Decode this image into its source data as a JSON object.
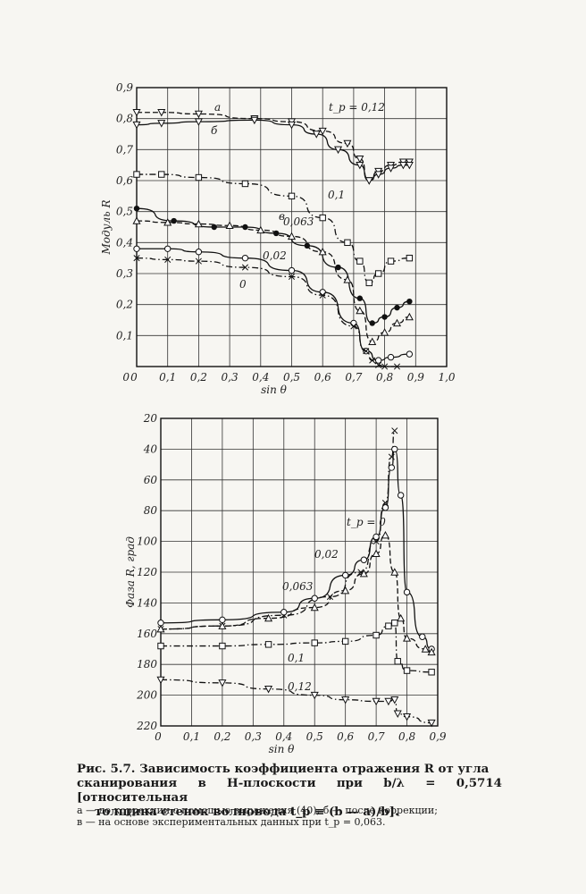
{
  "chart_data": [
    {
      "type": "line",
      "xlabel": "sin θ",
      "ylabel": "Модуль R",
      "xlim": [
        0,
        1.0
      ],
      "ylim": [
        0,
        0.9
      ],
      "x_ticks": [
        "0",
        "0,1",
        "0,2",
        "0,3",
        "0,4",
        "0,5",
        "0,6",
        "0,7",
        "0,8",
        "0,9",
        "1,0"
      ],
      "y_ticks": [
        "0,1",
        "0,2",
        "0,3",
        "0,4",
        "0,5",
        "0,6",
        "0,7",
        "0,8",
        "0,9"
      ],
      "grid": true,
      "series": [
        {
          "name": "а",
          "marker": "tri-down",
          "style": "dash",
          "x": [
            0.0,
            0.08,
            0.2,
            0.38,
            0.5,
            0.6,
            0.68,
            0.72,
            0.75,
            0.78,
            0.82,
            0.86,
            0.88
          ],
          "y": [
            0.82,
            0.82,
            0.815,
            0.8,
            0.79,
            0.76,
            0.72,
            0.67,
            0.6,
            0.63,
            0.65,
            0.66,
            0.66
          ]
        },
        {
          "name": "б",
          "marker": "tri-down",
          "style": "solid",
          "x": [
            0.0,
            0.08,
            0.2,
            0.38,
            0.5,
            0.58,
            0.65,
            0.72,
            0.75,
            0.78,
            0.82,
            0.86,
            0.88
          ],
          "y": [
            0.78,
            0.785,
            0.79,
            0.795,
            0.78,
            0.75,
            0.7,
            0.65,
            0.6,
            0.62,
            0.64,
            0.65,
            0.65
          ]
        },
        {
          "name": "0,1",
          "marker": "square",
          "style": "dashdot",
          "x": [
            0.0,
            0.08,
            0.2,
            0.35,
            0.5,
            0.6,
            0.68,
            0.72,
            0.75,
            0.78,
            0.82,
            0.88
          ],
          "y": [
            0.62,
            0.62,
            0.61,
            0.59,
            0.55,
            0.48,
            0.4,
            0.34,
            0.27,
            0.3,
            0.34,
            0.35
          ]
        },
        {
          "name": "в",
          "marker": "dot",
          "style": "solid",
          "x": [
            0.0,
            0.12,
            0.25,
            0.35,
            0.45,
            0.55,
            0.65,
            0.72,
            0.76,
            0.8,
            0.84,
            0.88
          ],
          "y": [
            0.51,
            0.47,
            0.45,
            0.45,
            0.43,
            0.39,
            0.32,
            0.22,
            0.14,
            0.16,
            0.19,
            0.21
          ]
        },
        {
          "name": "0,063",
          "marker": "triangle",
          "style": "dash",
          "x": [
            0.0,
            0.1,
            0.2,
            0.3,
            0.4,
            0.5,
            0.6,
            0.68,
            0.72,
            0.76,
            0.8,
            0.84,
            0.88
          ],
          "y": [
            0.47,
            0.465,
            0.46,
            0.455,
            0.44,
            0.42,
            0.37,
            0.28,
            0.18,
            0.08,
            0.11,
            0.14,
            0.16
          ]
        },
        {
          "name": "0,02",
          "marker": "circle",
          "style": "solid",
          "x": [
            0.0,
            0.1,
            0.2,
            0.35,
            0.5,
            0.6,
            0.7,
            0.74,
            0.78,
            0.82,
            0.88
          ],
          "y": [
            0.38,
            0.38,
            0.37,
            0.35,
            0.31,
            0.24,
            0.14,
            0.05,
            0.02,
            0.03,
            0.04
          ]
        },
        {
          "name": "0",
          "marker": "cross",
          "style": "dashdot",
          "x": [
            0.0,
            0.1,
            0.2,
            0.35,
            0.5,
            0.6,
            0.7,
            0.74,
            0.76,
            0.78,
            0.8,
            0.84
          ],
          "y": [
            0.35,
            0.345,
            0.34,
            0.32,
            0.29,
            0.23,
            0.13,
            0.05,
            0.02,
            0.005,
            0.0,
            0.0
          ]
        }
      ],
      "annotations": [
        "а",
        "б",
        "в",
        "t_p = 0,12",
        "0,1",
        "0,063",
        "0,02",
        "0"
      ]
    },
    {
      "type": "line",
      "xlabel": "sin θ",
      "ylabel": "Фаза R, град",
      "xlim": [
        0,
        0.9
      ],
      "ylim": [
        220,
        20
      ],
      "y_inverted": true,
      "x_ticks": [
        "0",
        "0,1",
        "0,2",
        "0,3",
        "0,4",
        "0,5",
        "0,6",
        "0,7",
        "0,8",
        "0,9"
      ],
      "y_ticks": [
        "20",
        "40",
        "60",
        "80",
        "100",
        "120",
        "140",
        "160",
        "180",
        "200",
        "220"
      ],
      "grid": true,
      "series": [
        {
          "name": "0",
          "marker": "cross",
          "style": "dashdot",
          "x": [
            0.0,
            0.2,
            0.4,
            0.55,
            0.65,
            0.7,
            0.73,
            0.75,
            0.76
          ],
          "y": [
            157,
            155,
            148,
            136,
            120,
            100,
            75,
            45,
            28
          ]
        },
        {
          "name": "0,02",
          "marker": "circle",
          "style": "solid",
          "x": [
            0.0,
            0.2,
            0.4,
            0.5,
            0.6,
            0.66,
            0.7,
            0.73,
            0.75,
            0.76,
            0.78,
            0.8,
            0.85,
            0.88
          ],
          "y": [
            153,
            151,
            146,
            137,
            122,
            112,
            97,
            78,
            52,
            40,
            70,
            133,
            162,
            170
          ]
        },
        {
          "name": "0,063",
          "marker": "triangle",
          "style": "dash",
          "x": [
            0.0,
            0.2,
            0.35,
            0.5,
            0.6,
            0.66,
            0.7,
            0.73,
            0.76,
            0.78,
            0.8,
            0.86,
            0.88
          ],
          "y": [
            157,
            155,
            150,
            143,
            132,
            121,
            108,
            96,
            120,
            150,
            163,
            170,
            172
          ]
        },
        {
          "name": "0,1",
          "marker": "square",
          "style": "dashdot",
          "x": [
            0.0,
            0.2,
            0.35,
            0.5,
            0.6,
            0.7,
            0.74,
            0.76,
            0.77,
            0.8,
            0.88
          ],
          "y": [
            168,
            168,
            167,
            166,
            165,
            161,
            155,
            153,
            178,
            184,
            185
          ]
        },
        {
          "name": "0,12",
          "marker": "tri-down",
          "style": "dashdot",
          "x": [
            0.0,
            0.2,
            0.35,
            0.5,
            0.6,
            0.7,
            0.74,
            0.76,
            0.77,
            0.8,
            0.88
          ],
          "y": [
            190,
            192,
            196,
            200,
            203,
            204,
            204,
            203,
            212,
            214,
            218
          ]
        }
      ],
      "annotations": [
        "t_p = 0",
        "0,02",
        "0,063",
        "0,1",
        "0,12"
      ]
    }
  ],
  "caption": {
    "line1": "Рис. 5.7. Зависимость коэффициента отражения R от угла",
    "line2": "сканирования в H-плоскости при b/λ = 0,5714 [относительная",
    "line3": "толщина стенок волновода t_p ≡ (b — a)/b].",
    "note1": "а — до коррекции с помощью выражения (40); б — после коррекции;",
    "note2": "в — на основе экспериментальных данных при t_p = 0,063."
  }
}
